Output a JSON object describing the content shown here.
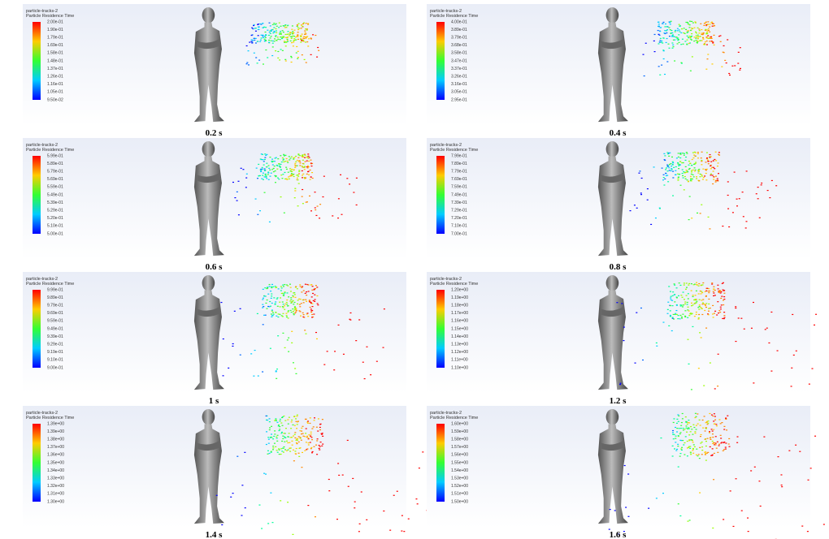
{
  "panels": [
    {
      "caption": "0.2 s",
      "legend_title": "particle-tracks-2",
      "legend_subtitle": "Particle Residence Time",
      "scale_labels": [
        "2.00e-01",
        "1.90e-01",
        "1.79e-01",
        "1.69e-01",
        "1.58e-01",
        "1.48e-01",
        "1.37e-01",
        "1.26e-01",
        "1.16e-01",
        "1.05e-01",
        "9.50e-02"
      ]
    },
    {
      "caption": "0.4 s",
      "legend_title": "particle-tracks-2",
      "legend_subtitle": "Particle Residence Time",
      "scale_labels": [
        "4.00e-01",
        "3.89e-01",
        "3.79e-01",
        "3.68e-01",
        "3.58e-01",
        "3.47e-01",
        "3.37e-01",
        "3.26e-01",
        "3.16e-01",
        "3.05e-01",
        "2.95e-01"
      ]
    },
    {
      "caption": "0.6 s",
      "legend_title": "particle-tracks-2",
      "legend_subtitle": "Particle Residence Time",
      "scale_labels": [
        "5.99e-01",
        "5.89e-01",
        "5.79e-01",
        "5.69e-01",
        "5.59e-01",
        "5.49e-01",
        "5.39e-01",
        "5.29e-01",
        "5.20e-01",
        "5.10e-01",
        "5.00e-01"
      ]
    },
    {
      "caption": "0.8 s",
      "legend_title": "particle-tracks-2",
      "legend_subtitle": "Particle Residence Time",
      "scale_labels": [
        "7.99e-01",
        "7.89e-01",
        "7.79e-01",
        "7.69e-01",
        "7.59e-01",
        "7.49e-01",
        "7.39e-01",
        "7.29e-01",
        "7.20e-01",
        "7.10e-01",
        "7.00e-01"
      ]
    },
    {
      "caption": "1 s",
      "legend_title": "particle-tracks-2",
      "legend_subtitle": "Particle Residence Time",
      "scale_labels": [
        "9.99e-01",
        "9.89e-01",
        "9.79e-01",
        "9.69e-01",
        "9.59e-01",
        "9.49e-01",
        "9.39e-01",
        "9.29e-01",
        "9.19e-01",
        "9.10e-01",
        "9.00e-01"
      ]
    },
    {
      "caption": "1.2 s",
      "legend_title": "particle-tracks-2",
      "legend_subtitle": "Particle Residence Time",
      "scale_labels": [
        "1.20e+00",
        "1.19e+00",
        "1.18e+00",
        "1.17e+00",
        "1.16e+00",
        "1.15e+00",
        "1.14e+00",
        "1.13e+00",
        "1.12e+00",
        "1.11e+00",
        "1.10e+00"
      ]
    },
    {
      "caption": "1.4 s",
      "legend_title": "particle-tracks-2",
      "legend_subtitle": "Particle Residence Time",
      "scale_labels": [
        "1.39e+00",
        "1.39e+00",
        "1.38e+00",
        "1.37e+00",
        "1.36e+00",
        "1.35e+00",
        "1.34e+00",
        "1.33e+00",
        "1.32e+00",
        "1.31e+00",
        "1.30e+00"
      ]
    },
    {
      "caption": "1.6 s",
      "legend_title": "particle-tracks-2",
      "legend_subtitle": "Particle Residence Time",
      "scale_labels": [
        "1.60e+00",
        "1.59e+00",
        "1.58e+00",
        "1.57e+00",
        "1.56e+00",
        "1.55e+00",
        "1.54e+00",
        "1.53e+00",
        "1.52e+00",
        "1.51e+00",
        "1.50e+00"
      ]
    }
  ]
}
